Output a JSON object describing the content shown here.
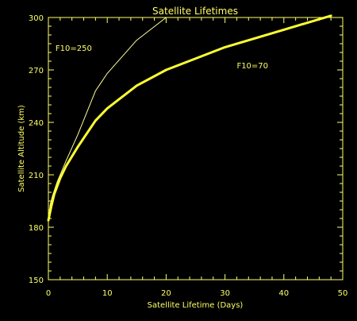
{
  "chart_data": {
    "type": "line",
    "title": "Satellite Lifetimes",
    "xlabel": "Satellite Lifetime (Days)",
    "ylabel": "Satellite Altitude (km)",
    "xlim": [
      0,
      50
    ],
    "ylim": [
      150,
      300
    ],
    "x_ticks": [
      0,
      10,
      20,
      30,
      40,
      50
    ],
    "y_ticks": [
      150,
      180,
      210,
      240,
      270,
      300
    ],
    "grid": false,
    "colors": {
      "background": "#000000",
      "axes": "#ffff66",
      "text": "#ffff66",
      "series_thin": "#ffff99",
      "series_thick": "#ffff33"
    },
    "series": [
      {
        "name": "F10=250",
        "points": [
          [
            0,
            184
          ],
          [
            0.3,
            193
          ],
          [
            0.7,
            198
          ],
          [
            1.5,
            206
          ],
          [
            3,
            218
          ],
          [
            5,
            233
          ],
          [
            8,
            258
          ],
          [
            10,
            268
          ],
          [
            15,
            287
          ],
          [
            20,
            300
          ]
        ]
      },
      {
        "name": "F10=70",
        "points": [
          [
            0,
            184
          ],
          [
            0.5,
            192
          ],
          [
            1,
            199
          ],
          [
            2,
            208
          ],
          [
            3,
            215
          ],
          [
            5,
            226
          ],
          [
            8,
            241
          ],
          [
            10,
            248
          ],
          [
            15,
            261
          ],
          [
            20,
            270
          ],
          [
            30,
            283
          ],
          [
            40,
            293
          ],
          [
            48,
            301
          ]
        ]
      }
    ],
    "annotations": [
      {
        "text": "F10=250",
        "series": 0,
        "data_x": 1.2,
        "data_y": 281
      },
      {
        "text": "F10=70",
        "series": 1,
        "data_x": 32,
        "data_y": 271
      }
    ]
  }
}
